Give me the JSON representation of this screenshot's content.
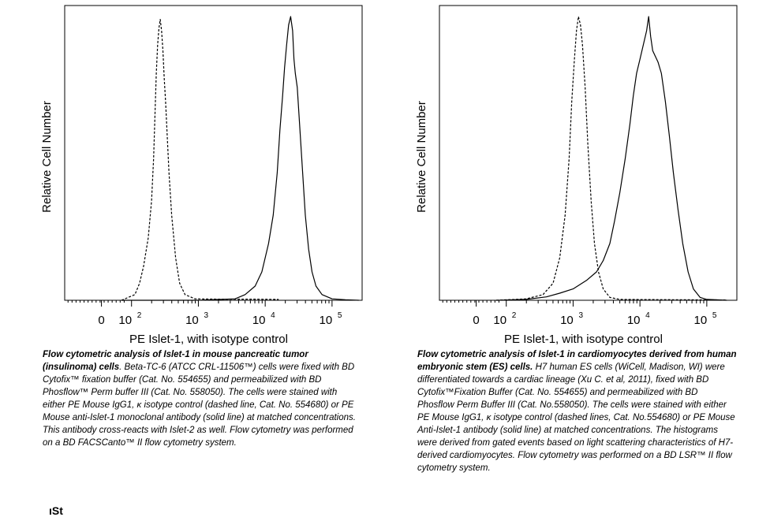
{
  "chart_data": [
    {
      "type": "area",
      "title": "",
      "ylabel": "Relative Cell Number",
      "xlabel": "PE Islet-1, with isotype control",
      "x_scale": "log",
      "x_ticks": [
        {
          "label": "0",
          "exp": ""
        },
        {
          "label": "10",
          "exp": "2"
        },
        {
          "label": "10",
          "exp": "3"
        },
        {
          "label": "10",
          "exp": "4"
        },
        {
          "label": "10",
          "exp": "5"
        }
      ],
      "series": [
        {
          "style": "dashed",
          "points": [
            [
              -0.15,
              0
            ],
            [
              0.05,
              0.02
            ],
            [
              0.12,
              0.06
            ],
            [
              0.18,
              0.12
            ],
            [
              0.25,
              0.22
            ],
            [
              0.3,
              0.35
            ],
            [
              0.33,
              0.5
            ],
            [
              0.35,
              0.65
            ],
            [
              0.37,
              0.8
            ],
            [
              0.39,
              0.9
            ],
            [
              0.41,
              0.96
            ],
            [
              0.43,
              0.99
            ],
            [
              0.45,
              0.95
            ],
            [
              0.47,
              0.88
            ],
            [
              0.49,
              0.78
            ],
            [
              0.51,
              0.7
            ],
            [
              0.53,
              0.6
            ],
            [
              0.56,
              0.45
            ],
            [
              0.6,
              0.3
            ],
            [
              0.66,
              0.15
            ],
            [
              0.72,
              0.06
            ],
            [
              0.8,
              0.02
            ],
            [
              0.95,
              0.005
            ],
            [
              1.3,
              0.004
            ],
            [
              1.8,
              0.004
            ],
            [
              2.2,
              0.003
            ]
          ]
        },
        {
          "style": "solid",
          "points": [
            [
              -0.15,
              0
            ],
            [
              1.0,
              0
            ],
            [
              1.55,
              0.005
            ],
            [
              1.7,
              0.02
            ],
            [
              1.85,
              0.05
            ],
            [
              1.95,
              0.1
            ],
            [
              2.05,
              0.2
            ],
            [
              2.12,
              0.3
            ],
            [
              2.18,
              0.45
            ],
            [
              2.22,
              0.6
            ],
            [
              2.26,
              0.72
            ],
            [
              2.29,
              0.82
            ],
            [
              2.32,
              0.9
            ],
            [
              2.35,
              0.97
            ],
            [
              2.38,
              1.0
            ],
            [
              2.41,
              0.95
            ],
            [
              2.43,
              0.85
            ],
            [
              2.45,
              0.8
            ],
            [
              2.48,
              0.75
            ],
            [
              2.52,
              0.6
            ],
            [
              2.56,
              0.45
            ],
            [
              2.6,
              0.3
            ],
            [
              2.65,
              0.18
            ],
            [
              2.7,
              0.1
            ],
            [
              2.76,
              0.05
            ],
            [
              2.85,
              0.02
            ],
            [
              3.0,
              0.005
            ],
            [
              3.2,
              0.002
            ],
            [
              3.4,
              0
            ]
          ]
        }
      ],
      "caption": {
        "bold": "Flow cytometric analysis of Islet-1 in mouse pancreatic tumor (insulinoma) cells",
        "rest": ". Beta-TC-6 (ATCC CRL-11506™) cells were fixed with BD Cytofix™ fixation buffer (Cat. No. 554655) and permeabilized with BD Phosflow™ Perm buffer III (Cat. No. 558050). The cells were stained with either PE Mouse IgG1, κ isotype control (dashed line, Cat. No. 554680) or PE Mouse anti-Islet-1 monoclonal antibody (solid line) at matched concentrations. This antibody cross-reacts with Islet-2 as well. Flow cytometry was performed on a BD FACSCanto™ II flow cytometry system."
      }
    },
    {
      "type": "area",
      "title": "",
      "ylabel": "Relative Cell Number",
      "xlabel": "PE Islet-1, with isotype control",
      "x_scale": "log",
      "x_ticks": [
        {
          "label": "0",
          "exp": ""
        },
        {
          "label": "10",
          "exp": "2"
        },
        {
          "label": "10",
          "exp": "3"
        },
        {
          "label": "10",
          "exp": "4"
        },
        {
          "label": "10",
          "exp": "5"
        }
      ],
      "series": [
        {
          "style": "dashed",
          "points": [
            [
              -0.15,
              0
            ],
            [
              0.3,
              0.005
            ],
            [
              0.55,
              0.02
            ],
            [
              0.7,
              0.06
            ],
            [
              0.8,
              0.15
            ],
            [
              0.88,
              0.3
            ],
            [
              0.94,
              0.5
            ],
            [
              0.98,
              0.7
            ],
            [
              1.02,
              0.85
            ],
            [
              1.05,
              0.95
            ],
            [
              1.08,
              1.0
            ],
            [
              1.11,
              0.97
            ],
            [
              1.14,
              0.9
            ],
            [
              1.18,
              0.75
            ],
            [
              1.22,
              0.55
            ],
            [
              1.27,
              0.35
            ],
            [
              1.32,
              0.2
            ],
            [
              1.38,
              0.1
            ],
            [
              1.45,
              0.04
            ],
            [
              1.55,
              0.01
            ],
            [
              1.7,
              0.003
            ],
            [
              2.5,
              0.002
            ],
            [
              3.3,
              0.001
            ]
          ]
        },
        {
          "style": "solid",
          "points": [
            [
              -0.15,
              0
            ],
            [
              0.3,
              0.003
            ],
            [
              0.6,
              0.012
            ],
            [
              0.8,
              0.025
            ],
            [
              1.0,
              0.04
            ],
            [
              1.2,
              0.07
            ],
            [
              1.35,
              0.1
            ],
            [
              1.45,
              0.14
            ],
            [
              1.55,
              0.2
            ],
            [
              1.62,
              0.28
            ],
            [
              1.7,
              0.38
            ],
            [
              1.78,
              0.5
            ],
            [
              1.85,
              0.62
            ],
            [
              1.9,
              0.72
            ],
            [
              1.95,
              0.8
            ],
            [
              2.0,
              0.85
            ],
            [
              2.05,
              0.9
            ],
            [
              2.1,
              0.95
            ],
            [
              2.13,
              1.0
            ],
            [
              2.16,
              0.93
            ],
            [
              2.19,
              0.88
            ],
            [
              2.23,
              0.86
            ],
            [
              2.27,
              0.84
            ],
            [
              2.32,
              0.8
            ],
            [
              2.38,
              0.7
            ],
            [
              2.44,
              0.58
            ],
            [
              2.5,
              0.45
            ],
            [
              2.57,
              0.32
            ],
            [
              2.64,
              0.2
            ],
            [
              2.72,
              0.1
            ],
            [
              2.8,
              0.04
            ],
            [
              2.9,
              0.01
            ],
            [
              3.0,
              0.003
            ],
            [
              3.3,
              0
            ]
          ]
        }
      ],
      "caption": {
        "bold": "Flow cytometric analysis of Islet-1 in cardiomyocytes derived from human embryonic stem (ES) cells.",
        "rest": " H7 human ES cells (WiCell, Madison, WI) were differentiated towards a cardiac lineage (Xu C. et al, 2011), fixed with BD Cytofix™Fixation Buffer (Cat. No. 554655) and permeabilized with BD Phosflow Perm Buffer III (Cat. No.558050). The cells were stained with either PE Mouse IgG1, κ isotype control (dashed lines, Cat. No.554680) or PE Mouse Anti-Islet-1 antibody (solid line) at matched concentrations. The histograms were derived from gated events based on light scattering characteristics of H7-derived cardiomyocytes. Flow cytometry was performed on a BD LSR™ II flow cytometry system."
      }
    }
  ],
  "footer_text": "ıSt"
}
